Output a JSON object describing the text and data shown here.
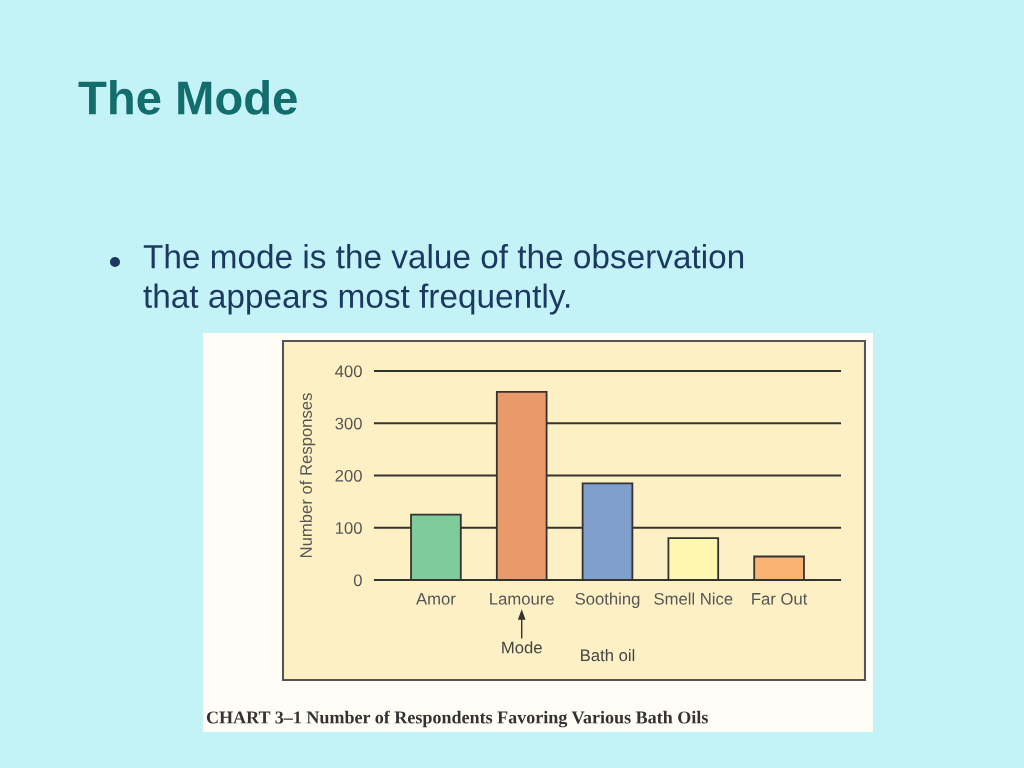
{
  "chart_data": {
    "type": "bar",
    "title": "The Mode",
    "subtitle": "The mode is the value of the observation\nthat appears most frequently.",
    "categories": [
      "Amor",
      "Lamoure",
      "Soothing",
      "Smell Nice",
      "Far Out"
    ],
    "values": [
      125,
      360,
      185,
      80,
      45
    ],
    "colors": [
      "#7fcb9a",
      "#e99a68",
      "#819fcb",
      "#fdf7b0",
      "#f9b473"
    ],
    "ylim": [
      0,
      400
    ],
    "yticks": [
      0,
      100,
      200,
      300,
      400
    ],
    "ylabel": "Number of Responses",
    "xlabel": "Bath oil",
    "grid": "y",
    "annotations": [
      "Mode",
      "CHART 3–1 Number of Respondents Favoring Various Bath Oils"
    ]
  }
}
